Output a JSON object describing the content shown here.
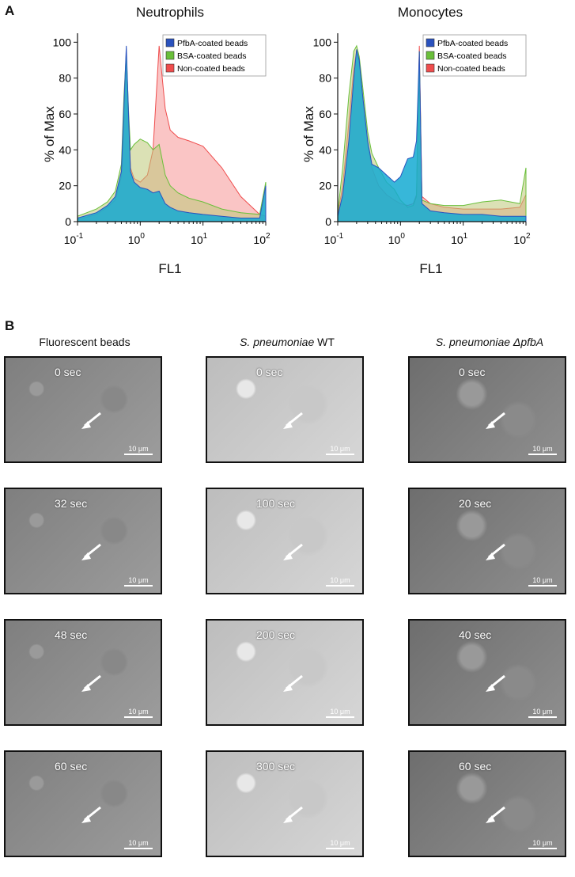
{
  "panel_a_letter": "A",
  "panel_b_letter": "B",
  "colors": {
    "pfba": "#2a52be",
    "bsa": "#6abf3a",
    "noncoated": "#ef4d4d"
  },
  "chart_data": [
    {
      "type": "area",
      "title": "Neutrophils",
      "xlabel": "FL1",
      "ylabel": "% of Max",
      "x_scale": "log",
      "xlim": [
        0.1,
        100
      ],
      "ylim": [
        0,
        105
      ],
      "y_ticks": [
        "0",
        "20",
        "40",
        "60",
        "80",
        "100"
      ],
      "x_tick_labels": [
        {
          "base": "10",
          "exp": "-1"
        },
        {
          "base": "10",
          "exp": "0"
        },
        {
          "base": "10",
          "exp": "1"
        },
        {
          "base": "10",
          "exp": "2"
        }
      ],
      "legend": "top-right",
      "series": [
        {
          "name": "PfbA-coated beads",
          "color": "#2a52be",
          "x": [
            0.1,
            0.2,
            0.3,
            0.4,
            0.5,
            0.55,
            0.6,
            0.65,
            0.7,
            0.8,
            1.0,
            1.3,
            1.6,
            2.0,
            2.5,
            3,
            4,
            6,
            10,
            20,
            40,
            80,
            100
          ],
          "y": [
            2,
            5,
            9,
            14,
            28,
            65,
            98,
            60,
            28,
            22,
            19,
            18,
            16,
            17,
            10,
            8,
            6,
            5,
            4,
            3,
            2,
            2,
            20
          ]
        },
        {
          "name": "BSA-coated beads",
          "color": "#6abf3a",
          "x": [
            0.1,
            0.2,
            0.3,
            0.4,
            0.5,
            0.55,
            0.6,
            0.65,
            0.7,
            0.8,
            1.0,
            1.3,
            1.6,
            2.0,
            2.5,
            3,
            4,
            6,
            10,
            20,
            40,
            80,
            100
          ],
          "y": [
            3,
            7,
            11,
            17,
            32,
            70,
            94,
            62,
            40,
            43,
            46,
            44,
            40,
            43,
            26,
            20,
            16,
            13,
            11,
            7,
            5,
            4,
            22
          ]
        },
        {
          "name": "Non-coated beads",
          "color": "#ef4d4d",
          "x": [
            0.1,
            0.2,
            0.3,
            0.4,
            0.5,
            0.55,
            0.6,
            0.65,
            0.7,
            0.8,
            1.0,
            1.3,
            1.6,
            2.0,
            2.5,
            3,
            4,
            6,
            10,
            20,
            40,
            80,
            100
          ],
          "y": [
            1,
            4,
            8,
            12,
            25,
            55,
            90,
            55,
            30,
            24,
            22,
            26,
            40,
            98,
            63,
            51,
            47,
            45,
            42,
            30,
            14,
            4,
            3
          ]
        }
      ]
    },
    {
      "type": "area",
      "title": "Monocytes",
      "xlabel": "FL1",
      "ylabel": "% of Max",
      "x_scale": "log",
      "xlim": [
        0.1,
        100
      ],
      "ylim": [
        0,
        105
      ],
      "y_ticks": [
        "0",
        "20",
        "40",
        "60",
        "80",
        "100"
      ],
      "x_tick_labels": [
        {
          "base": "10",
          "exp": "-1"
        },
        {
          "base": "10",
          "exp": "0"
        },
        {
          "base": "10",
          "exp": "1"
        },
        {
          "base": "10",
          "exp": "2"
        }
      ],
      "legend": "top-right",
      "series": [
        {
          "name": "PfbA-coated beads",
          "color": "#2a52be",
          "x": [
            0.1,
            0.12,
            0.15,
            0.18,
            0.2,
            0.22,
            0.25,
            0.3,
            0.35,
            0.45,
            0.6,
            0.8,
            1.0,
            1.3,
            1.6,
            1.8,
            2.0,
            2.2,
            3,
            5,
            10,
            20,
            40,
            80,
            100
          ],
          "y": [
            3,
            15,
            45,
            80,
            96,
            90,
            70,
            45,
            32,
            30,
            26,
            22,
            25,
            35,
            36,
            45,
            95,
            10,
            6,
            5,
            4,
            4,
            3,
            3,
            3
          ]
        },
        {
          "name": "BSA-coated beads",
          "color": "#6abf3a",
          "x": [
            0.1,
            0.12,
            0.15,
            0.18,
            0.2,
            0.22,
            0.25,
            0.3,
            0.35,
            0.45,
            0.6,
            0.8,
            1.0,
            1.3,
            1.6,
            1.8,
            2.0,
            2.2,
            3,
            5,
            10,
            20,
            40,
            80,
            100
          ],
          "y": [
            5,
            30,
            70,
            95,
            98,
            92,
            75,
            50,
            38,
            30,
            22,
            18,
            12,
            8,
            9,
            14,
            95,
            12,
            10,
            9,
            9,
            11,
            12,
            10,
            30
          ]
        },
        {
          "name": "Non-coated beads",
          "color": "#ef4d4d",
          "x": [
            0.1,
            0.12,
            0.15,
            0.18,
            0.2,
            0.22,
            0.25,
            0.3,
            0.35,
            0.45,
            0.6,
            0.8,
            1.0,
            1.3,
            1.6,
            1.8,
            2.0,
            2.2,
            3,
            5,
            10,
            20,
            40,
            80,
            100
          ],
          "y": [
            4,
            20,
            55,
            85,
            95,
            88,
            70,
            42,
            30,
            20,
            15,
            12,
            10,
            9,
            10,
            15,
            98,
            14,
            10,
            8,
            7,
            7,
            7,
            8,
            15
          ]
        }
      ]
    }
  ],
  "panel_b": {
    "columns": [
      {
        "pre": "Fluorescent beads",
        "italic": "",
        "post": ""
      },
      {
        "pre": "",
        "italic": "S. pneumoniae",
        "post": " WT"
      },
      {
        "pre": "",
        "italic": "S. pneumoniae ΔpfbA",
        "post": ""
      }
    ],
    "scale_label": "10 μm",
    "rows": [
      [
        "0 sec",
        "0 sec",
        "0 sec"
      ],
      [
        "32 sec",
        "100 sec",
        "20 sec"
      ],
      [
        "48 sec",
        "200 sec",
        "40 sec"
      ],
      [
        "60 sec",
        "300 sec",
        "60 sec"
      ]
    ]
  }
}
